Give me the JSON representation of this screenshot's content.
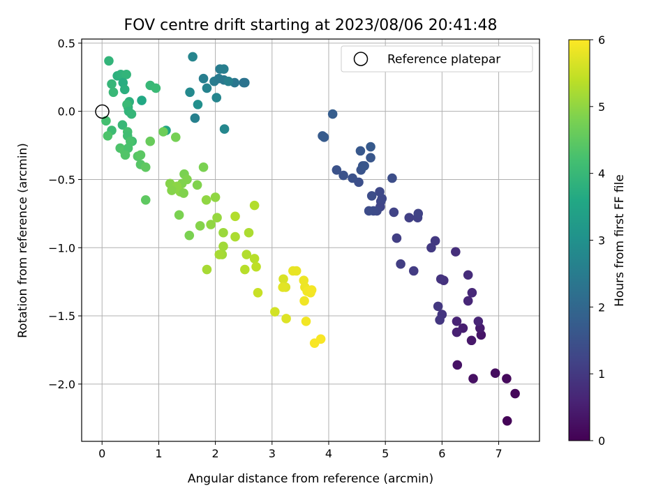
{
  "chart_data": {
    "type": "scatter",
    "title": "FOV centre drift starting at 2023/08/06 20:41:48",
    "xlabel": "Angular distance from reference (arcmin)",
    "ylabel": "Rotation from reference (arcmin)",
    "xlim": [
      -0.36,
      7.72
    ],
    "ylim": [
      -2.42,
      0.53
    ],
    "xticks": [
      0,
      1,
      2,
      3,
      4,
      5,
      6,
      7
    ],
    "yticks": [
      0.5,
      0.0,
      -0.5,
      -1.0,
      -1.5,
      -2.0
    ],
    "xtick_labels": [
      "0",
      "1",
      "2",
      "3",
      "4",
      "5",
      "6",
      "7"
    ],
    "ytick_labels": [
      "0.5",
      "0.0",
      "−0.5",
      "−1.0",
      "−1.5",
      "−2.0"
    ],
    "grid": true,
    "legend": {
      "location": "top-right",
      "entries": [
        "Reference platepar"
      ]
    },
    "reference_point": {
      "x": 0.0,
      "y": 0.0
    },
    "colorbar": {
      "label": "Hours from first FF file",
      "range": [
        0,
        6
      ],
      "ticks": [
        0,
        1,
        2,
        3,
        4,
        5,
        6
      ],
      "tick_labels": [
        "0",
        "1",
        "2",
        "3",
        "4",
        "5",
        "6"
      ],
      "colormap": "viridis"
    },
    "points": [
      {
        "x": 7.15,
        "y": -2.27,
        "h": 0.05
      },
      {
        "x": 7.29,
        "y": -2.07,
        "h": 0.1
      },
      {
        "x": 7.14,
        "y": -1.96,
        "h": 0.15
      },
      {
        "x": 6.94,
        "y": -1.92,
        "h": 0.2
      },
      {
        "x": 6.55,
        "y": -1.96,
        "h": 0.25
      },
      {
        "x": 6.27,
        "y": -1.86,
        "h": 0.3
      },
      {
        "x": 6.69,
        "y": -1.64,
        "h": 0.35
      },
      {
        "x": 6.52,
        "y": -1.68,
        "h": 0.4
      },
      {
        "x": 6.67,
        "y": -1.59,
        "h": 0.45
      },
      {
        "x": 6.37,
        "y": -1.59,
        "h": 0.5
      },
      {
        "x": 6.26,
        "y": -1.62,
        "h": 0.55
      },
      {
        "x": 6.26,
        "y": -1.54,
        "h": 0.6
      },
      {
        "x": 6.64,
        "y": -1.54,
        "h": 0.62
      },
      {
        "x": 6.46,
        "y": -1.39,
        "h": 0.65
      },
      {
        "x": 6.53,
        "y": -1.33,
        "h": 0.7
      },
      {
        "x": 6.46,
        "y": -1.2,
        "h": 0.75
      },
      {
        "x": 6.24,
        "y": -1.03,
        "h": 0.8
      },
      {
        "x": 6.03,
        "y": -1.24,
        "h": 0.85
      },
      {
        "x": 5.98,
        "y": -1.23,
        "h": 0.9
      },
      {
        "x": 6.0,
        "y": -1.49,
        "h": 0.92
      },
      {
        "x": 5.96,
        "y": -1.53,
        "h": 0.95
      },
      {
        "x": 5.93,
        "y": -1.43,
        "h": 0.98
      },
      {
        "x": 5.88,
        "y": -0.95,
        "h": 1.0
      },
      {
        "x": 5.81,
        "y": -1.0,
        "h": 1.02
      },
      {
        "x": 5.5,
        "y": -1.17,
        "h": 1.05
      },
      {
        "x": 5.27,
        "y": -1.12,
        "h": 1.08
      },
      {
        "x": 5.2,
        "y": -0.93,
        "h": 1.1
      },
      {
        "x": 5.42,
        "y": -0.78,
        "h": 1.12
      },
      {
        "x": 5.57,
        "y": -0.78,
        "h": 1.15
      },
      {
        "x": 5.58,
        "y": -0.75,
        "h": 1.18
      },
      {
        "x": 5.15,
        "y": -0.74,
        "h": 1.2
      },
      {
        "x": 4.91,
        "y": -0.7,
        "h": 1.22
      },
      {
        "x": 4.92,
        "y": -0.66,
        "h": 1.25
      },
      {
        "x": 4.94,
        "y": -0.64,
        "h": 1.28
      },
      {
        "x": 4.9,
        "y": -0.59,
        "h": 1.3
      },
      {
        "x": 4.85,
        "y": -0.73,
        "h": 1.32
      },
      {
        "x": 4.79,
        "y": -0.73,
        "h": 1.35
      },
      {
        "x": 4.71,
        "y": -0.73,
        "h": 1.38
      },
      {
        "x": 4.76,
        "y": -0.62,
        "h": 1.4
      },
      {
        "x": 5.12,
        "y": -0.49,
        "h": 1.42
      },
      {
        "x": 4.53,
        "y": -0.52,
        "h": 1.45
      },
      {
        "x": 4.42,
        "y": -0.49,
        "h": 1.48
      },
      {
        "x": 4.26,
        "y": -0.47,
        "h": 1.5
      },
      {
        "x": 4.14,
        "y": -0.43,
        "h": 1.52
      },
      {
        "x": 4.57,
        "y": -0.43,
        "h": 1.55
      },
      {
        "x": 4.6,
        "y": -0.4,
        "h": 1.58
      },
      {
        "x": 4.63,
        "y": -0.4,
        "h": 1.6
      },
      {
        "x": 4.74,
        "y": -0.34,
        "h": 1.62
      },
      {
        "x": 4.56,
        "y": -0.29,
        "h": 1.65
      },
      {
        "x": 4.74,
        "y": -0.26,
        "h": 1.68
      },
      {
        "x": 3.89,
        "y": -0.18,
        "h": 1.7
      },
      {
        "x": 3.92,
        "y": -0.19,
        "h": 1.72
      },
      {
        "x": 4.07,
        "y": -0.02,
        "h": 1.75
      },
      {
        "x": 2.16,
        "y": -0.13,
        "h": 2.75
      },
      {
        "x": 1.64,
        "y": -0.05,
        "h": 2.6
      },
      {
        "x": 1.69,
        "y": 0.05,
        "h": 2.95
      },
      {
        "x": 2.02,
        "y": 0.1,
        "h": 2.7
      },
      {
        "x": 1.55,
        "y": 0.14,
        "h": 2.8
      },
      {
        "x": 1.85,
        "y": 0.17,
        "h": 2.65
      },
      {
        "x": 1.79,
        "y": 0.24,
        "h": 2.55
      },
      {
        "x": 1.98,
        "y": 0.22,
        "h": 2.5
      },
      {
        "x": 2.06,
        "y": 0.24,
        "h": 2.45
      },
      {
        "x": 2.15,
        "y": 0.23,
        "h": 2.4
      },
      {
        "x": 2.34,
        "y": 0.21,
        "h": 2.35
      },
      {
        "x": 2.5,
        "y": 0.21,
        "h": 2.3
      },
      {
        "x": 2.52,
        "y": 0.21,
        "h": 2.28
      },
      {
        "x": 2.23,
        "y": 0.22,
        "h": 2.6
      },
      {
        "x": 2.08,
        "y": 0.31,
        "h": 2.5
      },
      {
        "x": 2.15,
        "y": 0.31,
        "h": 2.55
      },
      {
        "x": 1.6,
        "y": 0.4,
        "h": 2.7
      },
      {
        "x": 0.7,
        "y": 0.08,
        "h": 3.6
      },
      {
        "x": 0.12,
        "y": 0.37,
        "h": 3.9
      },
      {
        "x": 0.27,
        "y": 0.26,
        "h": 3.8
      },
      {
        "x": 0.33,
        "y": 0.27,
        "h": 3.85
      },
      {
        "x": 0.43,
        "y": 0.27,
        "h": 3.9
      },
      {
        "x": 0.37,
        "y": 0.21,
        "h": 3.7
      },
      {
        "x": 0.17,
        "y": 0.2,
        "h": 3.95
      },
      {
        "x": 0.2,
        "y": 0.14,
        "h": 4.0
      },
      {
        "x": 0.4,
        "y": 0.16,
        "h": 3.75
      },
      {
        "x": 0.48,
        "y": 0.07,
        "h": 3.8
      },
      {
        "x": 0.46,
        "y": 0.03,
        "h": 3.85
      },
      {
        "x": 0.44,
        "y": 0.05,
        "h": 4.05
      },
      {
        "x": 0.47,
        "y": -0.0,
        "h": 3.9
      },
      {
        "x": 0.52,
        "y": -0.02,
        "h": 3.95
      },
      {
        "x": 0.85,
        "y": 0.19,
        "h": 4.0
      },
      {
        "x": 0.95,
        "y": 0.17,
        "h": 4.05
      },
      {
        "x": 1.13,
        "y": -0.14,
        "h": 3.5
      },
      {
        "x": 0.07,
        "y": -0.07,
        "h": 4.2
      },
      {
        "x": 0.17,
        "y": -0.14,
        "h": 4.1
      },
      {
        "x": 0.1,
        "y": -0.18,
        "h": 4.3
      },
      {
        "x": 0.36,
        "y": -0.1,
        "h": 4.0
      },
      {
        "x": 0.45,
        "y": -0.15,
        "h": 4.2
      },
      {
        "x": 0.45,
        "y": -0.18,
        "h": 4.15
      },
      {
        "x": 0.53,
        "y": -0.22,
        "h": 4.1
      },
      {
        "x": 0.5,
        "y": -0.22,
        "h": 4.25
      },
      {
        "x": 0.32,
        "y": -0.27,
        "h": 4.3
      },
      {
        "x": 0.39,
        "y": -0.29,
        "h": 4.35
      },
      {
        "x": 0.46,
        "y": -0.27,
        "h": 4.25
      },
      {
        "x": 0.41,
        "y": -0.32,
        "h": 4.35
      },
      {
        "x": 0.63,
        "y": -0.33,
        "h": 4.4
      },
      {
        "x": 0.68,
        "y": -0.32,
        "h": 4.45
      },
      {
        "x": 0.68,
        "y": -0.39,
        "h": 4.4
      },
      {
        "x": 0.77,
        "y": -0.41,
        "h": 4.5
      },
      {
        "x": 0.85,
        "y": -0.22,
        "h": 4.6
      },
      {
        "x": 1.08,
        "y": -0.15,
        "h": 4.65
      },
      {
        "x": 0.77,
        "y": -0.65,
        "h": 4.5
      },
      {
        "x": 1.3,
        "y": -0.19,
        "h": 4.75
      },
      {
        "x": 1.45,
        "y": -0.46,
        "h": 4.8
      },
      {
        "x": 1.41,
        "y": -0.53,
        "h": 4.85
      },
      {
        "x": 1.5,
        "y": -0.5,
        "h": 4.85
      },
      {
        "x": 1.2,
        "y": -0.53,
        "h": 4.9
      },
      {
        "x": 1.32,
        "y": -0.55,
        "h": 4.95
      },
      {
        "x": 1.23,
        "y": -0.58,
        "h": 4.9
      },
      {
        "x": 1.38,
        "y": -0.59,
        "h": 4.95
      },
      {
        "x": 1.44,
        "y": -0.6,
        "h": 4.85
      },
      {
        "x": 1.68,
        "y": -0.54,
        "h": 4.85
      },
      {
        "x": 1.79,
        "y": -0.41,
        "h": 4.8
      },
      {
        "x": 1.84,
        "y": -0.65,
        "h": 5.0
      },
      {
        "x": 2.0,
        "y": -0.63,
        "h": 5.0
      },
      {
        "x": 1.36,
        "y": -0.76,
        "h": 4.8
      },
      {
        "x": 1.54,
        "y": -0.91,
        "h": 4.8
      },
      {
        "x": 1.73,
        "y": -0.84,
        "h": 4.9
      },
      {
        "x": 1.92,
        "y": -0.83,
        "h": 5.0
      },
      {
        "x": 2.03,
        "y": -0.78,
        "h": 5.05
      },
      {
        "x": 2.14,
        "y": -0.89,
        "h": 5.1
      },
      {
        "x": 2.14,
        "y": -0.99,
        "h": 5.15
      },
      {
        "x": 2.12,
        "y": -1.05,
        "h": 5.15
      },
      {
        "x": 2.07,
        "y": -1.05,
        "h": 5.2
      },
      {
        "x": 1.85,
        "y": -1.16,
        "h": 5.2
      },
      {
        "x": 2.35,
        "y": -0.92,
        "h": 5.25
      },
      {
        "x": 2.35,
        "y": -0.77,
        "h": 5.3
      },
      {
        "x": 2.59,
        "y": -0.89,
        "h": 5.25
      },
      {
        "x": 2.55,
        "y": -1.05,
        "h": 5.3
      },
      {
        "x": 2.52,
        "y": -1.16,
        "h": 5.35
      },
      {
        "x": 2.69,
        "y": -1.08,
        "h": 5.35
      },
      {
        "x": 2.72,
        "y": -1.14,
        "h": 5.4
      },
      {
        "x": 2.69,
        "y": -0.69,
        "h": 5.3
      },
      {
        "x": 2.75,
        "y": -1.33,
        "h": 5.5
      },
      {
        "x": 3.05,
        "y": -1.47,
        "h": 5.6
      },
      {
        "x": 3.2,
        "y": -1.23,
        "h": 5.65
      },
      {
        "x": 3.24,
        "y": -1.29,
        "h": 5.7
      },
      {
        "x": 3.19,
        "y": -1.29,
        "h": 5.75
      },
      {
        "x": 3.25,
        "y": -1.52,
        "h": 5.7
      },
      {
        "x": 3.37,
        "y": -1.17,
        "h": 5.8
      },
      {
        "x": 3.43,
        "y": -1.17,
        "h": 5.8
      },
      {
        "x": 3.56,
        "y": -1.24,
        "h": 5.85
      },
      {
        "x": 3.58,
        "y": -1.29,
        "h": 5.85
      },
      {
        "x": 3.62,
        "y": -1.32,
        "h": 5.9
      },
      {
        "x": 3.68,
        "y": -1.33,
        "h": 5.9
      },
      {
        "x": 3.57,
        "y": -1.39,
        "h": 5.88
      },
      {
        "x": 3.6,
        "y": -1.54,
        "h": 5.9
      },
      {
        "x": 3.75,
        "y": -1.7,
        "h": 5.95
      },
      {
        "x": 3.86,
        "y": -1.67,
        "h": 5.95
      },
      {
        "x": 3.7,
        "y": -1.31,
        "h": 5.92
      }
    ]
  }
}
